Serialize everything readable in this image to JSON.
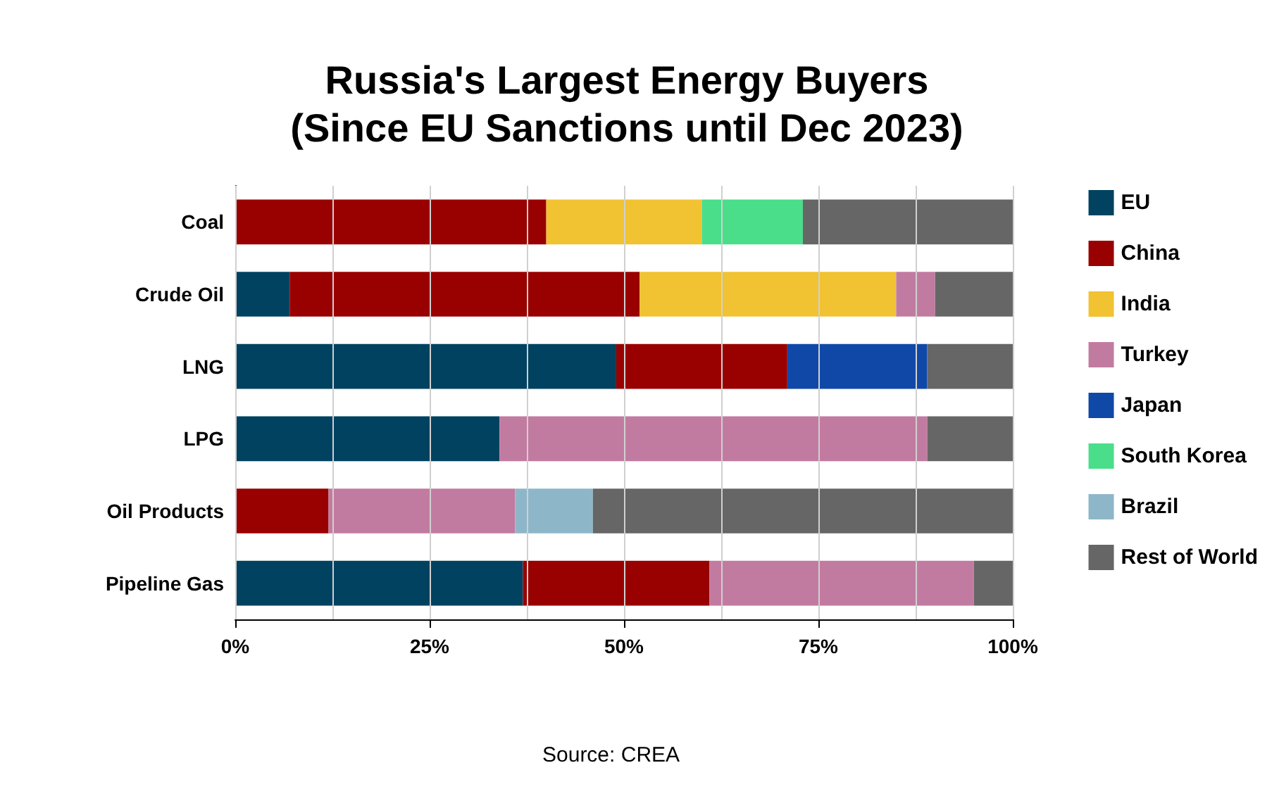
{
  "chart_data": {
    "type": "bar",
    "orientation": "horizontal",
    "stacked": true,
    "title": "Russia's Largest Energy Buyers",
    "subtitle": "(Since EU Sanctions until Dec 2023)",
    "categories": [
      "Coal",
      "Crude Oil",
      "LNG",
      "LPG",
      "Oil Products",
      "Pipeline Gas"
    ],
    "series": [
      {
        "name": "EU",
        "color": "#004260",
        "values": [
          null,
          7,
          49,
          34,
          null,
          37
        ]
      },
      {
        "name": "China",
        "color": "#990000",
        "values": [
          40,
          45,
          22,
          null,
          12,
          24
        ]
      },
      {
        "name": "India",
        "color": "#f1c232",
        "values": [
          20,
          33,
          null,
          null,
          null,
          null
        ]
      },
      {
        "name": "Turkey",
        "color": "#c27ba0",
        "values": [
          null,
          5,
          null,
          55,
          24,
          34
        ]
      },
      {
        "name": "Japan",
        "color": "#1048a8",
        "values": [
          null,
          null,
          18,
          null,
          null,
          null
        ]
      },
      {
        "name": "South Korea",
        "color": "#4ade8a",
        "values": [
          13,
          null,
          null,
          null,
          null,
          null
        ]
      },
      {
        "name": "Brazil",
        "color": "#8eb6c9",
        "values": [
          null,
          null,
          null,
          null,
          10,
          null
        ]
      },
      {
        "name": "Rest of World",
        "color": "#666666",
        "values": [
          27,
          10,
          11,
          11,
          54,
          5
        ]
      }
    ],
    "xlim": [
      0,
      100
    ],
    "xticks": [
      {
        "value": 0,
        "label": "0%"
      },
      {
        "value": 12.5,
        "label": null
      },
      {
        "value": 25,
        "label": "25%"
      },
      {
        "value": 37.5,
        "label": null
      },
      {
        "value": 50,
        "label": "50%"
      },
      {
        "value": 62.5,
        "label": null
      },
      {
        "value": 75,
        "label": "75%"
      },
      {
        "value": 87.5,
        "label": null
      },
      {
        "value": 100,
        "label": "100%"
      }
    ],
    "grid": "x",
    "legend": "right",
    "annotations": [
      "Source: CREA"
    ]
  }
}
